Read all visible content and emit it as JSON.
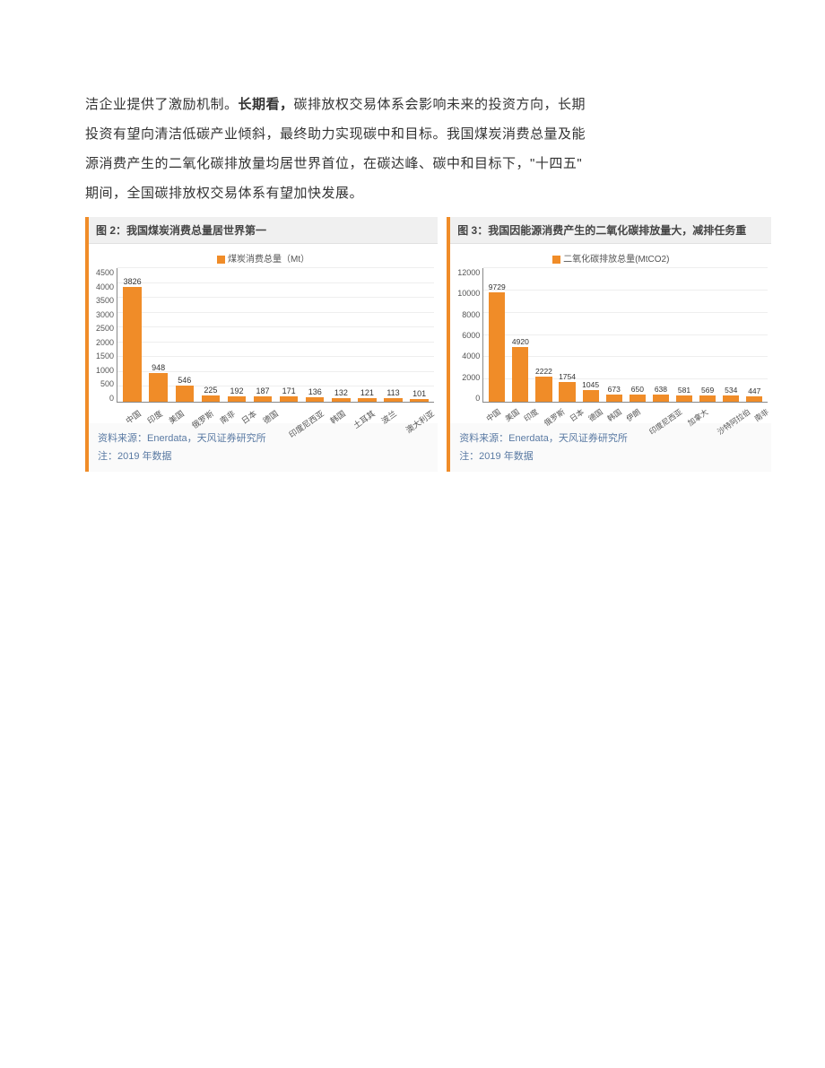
{
  "body_text": {
    "line1_pre": "洁企业提供了激励机制。",
    "line1_bold": "长期看，",
    "line1_post": "碳排放权交易体系会影响未来的投资方向，长期",
    "line2": "投资有望向清洁低碳产业倾斜，最终助力实现碳中和目标。我国煤炭消费总量及能",
    "line3": "源消费产生的二氧化碳排放量均居世界首位，在碳达峰、碳中和目标下，\"十四五\"",
    "line4": "期间，全国碳排放权交易体系有望加快发展。"
  },
  "chart_left": {
    "title": "图 2：我国煤炭消费总量居世界第一",
    "legend_label": "煤炭消费总量（Mt）",
    "bar_color": "#f08c28",
    "grid_color": "#eeeeee",
    "axis_color": "#888888",
    "value_font_size": 9,
    "ylim": [
      0,
      4500
    ],
    "ytick_step": 500,
    "yticks": [
      "4500",
      "4000",
      "3500",
      "3000",
      "2500",
      "2000",
      "1500",
      "1000",
      "500",
      "0"
    ],
    "categories": [
      "中国",
      "印度",
      "美国",
      "俄罗斯",
      "南非",
      "日本",
      "德国",
      "印度尼西亚",
      "韩国",
      "土耳其",
      "波兰",
      "澳大利亚"
    ],
    "values": [
      3826,
      948,
      546,
      225,
      192,
      187,
      171,
      136,
      132,
      121,
      113,
      101
    ],
    "source": "资料来源：Enerdata，天风证券研究所",
    "note": "注：2019 年数据"
  },
  "chart_right": {
    "title": "图 3：我国因能源消费产生的二氧化碳排放量大，减排任务重",
    "legend_label": "二氧化碳排放总量(MtCO2)",
    "bar_color": "#f08c28",
    "grid_color": "#eeeeee",
    "axis_color": "#888888",
    "value_font_size": 8.5,
    "ylim": [
      0,
      12000
    ],
    "ytick_step": 2000,
    "yticks": [
      "12000",
      "10000",
      "8000",
      "6000",
      "4000",
      "2000",
      "0"
    ],
    "categories": [
      "中国",
      "美国",
      "印度",
      "俄罗斯",
      "日本",
      "德国",
      "韩国",
      "伊朗",
      "印度尼西亚",
      "加拿大",
      "沙特阿拉伯",
      "南非"
    ],
    "values": [
      9729,
      4920,
      2222,
      1754,
      1045,
      673,
      650,
      638,
      581,
      569,
      534,
      447
    ],
    "source": "资料来源：Enerdata，天风证券研究所",
    "note": "注：2019 年数据"
  }
}
